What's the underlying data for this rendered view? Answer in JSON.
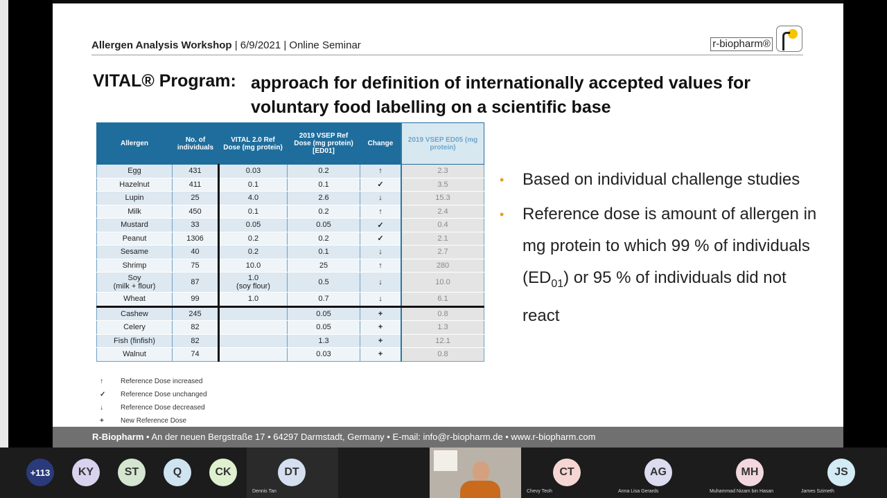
{
  "slide": {
    "header": {
      "event": "Allergen Analysis Workshop",
      "details": "| 6/9/2021 | Online Seminar"
    },
    "logo": {
      "text": "r-biopharm®"
    },
    "title": {
      "left": "VITAL® Program:",
      "right": "approach for definition of internationally accepted values for voluntary food labelling on a scientific base"
    },
    "table": {
      "headers": [
        "Allergen",
        "No. of individuals",
        "VITAL 2.0 Ref Dose (mg protein)",
        "2019 VSEP Ref Dose (mg protein) [ED01]",
        "Change",
        "2019 VSEP ED05 (mg protein)"
      ],
      "rows": [
        [
          "Egg",
          "431",
          "0.03",
          "0.2",
          "↑",
          "2.3"
        ],
        [
          "Hazelnut",
          "411",
          "0.1",
          "0.1",
          "✓",
          "3.5"
        ],
        [
          "Lupin",
          "25",
          "4.0",
          "2.6",
          "↓",
          "15.3"
        ],
        [
          "Milk",
          "450",
          "0.1",
          "0.2",
          "↑",
          "2.4"
        ],
        [
          "Mustard",
          "33",
          "0.05",
          "0.05",
          "✓",
          "0.4"
        ],
        [
          "Peanut",
          "1306",
          "0.2",
          "0.2",
          "✓",
          "2.1"
        ],
        [
          "Sesame",
          "40",
          "0.2",
          "0.1",
          "↓",
          "2.7"
        ],
        [
          "Shrimp",
          "75",
          "10.0",
          "25",
          "↑",
          "280"
        ],
        [
          "Soy\n(milk + flour)",
          "87",
          "1.0\n(soy flour)",
          "0.5",
          "↓",
          "10.0"
        ],
        [
          "Wheat",
          "99",
          "1.0",
          "0.7",
          "↓",
          "6.1"
        ],
        [
          "Cashew",
          "245",
          "",
          "0.05",
          "+",
          "0.8"
        ],
        [
          "Celery",
          "82",
          "",
          "0.05",
          "+",
          "1.3"
        ],
        [
          "Fish (finfish)",
          "82",
          "",
          "1.3",
          "+",
          "12.1"
        ],
        [
          "Walnut",
          "74",
          "",
          "0.03",
          "+",
          "0.8"
        ]
      ]
    },
    "legend": [
      {
        "symbol": "↑",
        "text": "Reference Dose increased"
      },
      {
        "symbol": "✓",
        "text": "Reference Dose unchanged"
      },
      {
        "symbol": "↓",
        "text": "Reference Dose decreased"
      },
      {
        "symbol": "+",
        "text": "New Reference Dose"
      }
    ],
    "bullets": {
      "b1": "Based on individual challenge studies",
      "b2_before": "Reference dose is amount of allergen in mg protein to which 99 % of individuals (ED",
      "b2_sub": "01",
      "b2_after": ") or 95 % of individuals did not react"
    },
    "footer": {
      "company": "R-Biopharm",
      "address": " • An der neuen Bergstraße 17 • 64297 Darmstadt, Germany • E-mail: info@r-biopharm.de • www.r-biopharm.com"
    }
  },
  "participants": [
    {
      "initials": "+113",
      "name": "",
      "color": "#2a3a7a"
    },
    {
      "initials": "KY",
      "name": "",
      "color": "#d9d2ee"
    },
    {
      "initials": "ST",
      "name": "",
      "color": "#d4e6cf"
    },
    {
      "initials": "Q",
      "name": "",
      "color": "#cfe3f0"
    },
    {
      "initials": "CK",
      "name": "",
      "color": "#dff0cf"
    },
    {
      "initials": "DT",
      "name": "Dennis Tan",
      "color": "#d6dff0"
    },
    {
      "initials": "CT",
      "name": "Chevy Teoh",
      "color": "#f6d6d2"
    },
    {
      "initials": "AG",
      "name": "Anna Lisa Gerards",
      "color": "#dcdcf0"
    },
    {
      "initials": "MH",
      "name": "Muhammad Nizam bin Hasan",
      "color": "#f3d7de"
    },
    {
      "initials": "JS",
      "name": "James Szimeth",
      "color": "#d2ebf5"
    }
  ]
}
